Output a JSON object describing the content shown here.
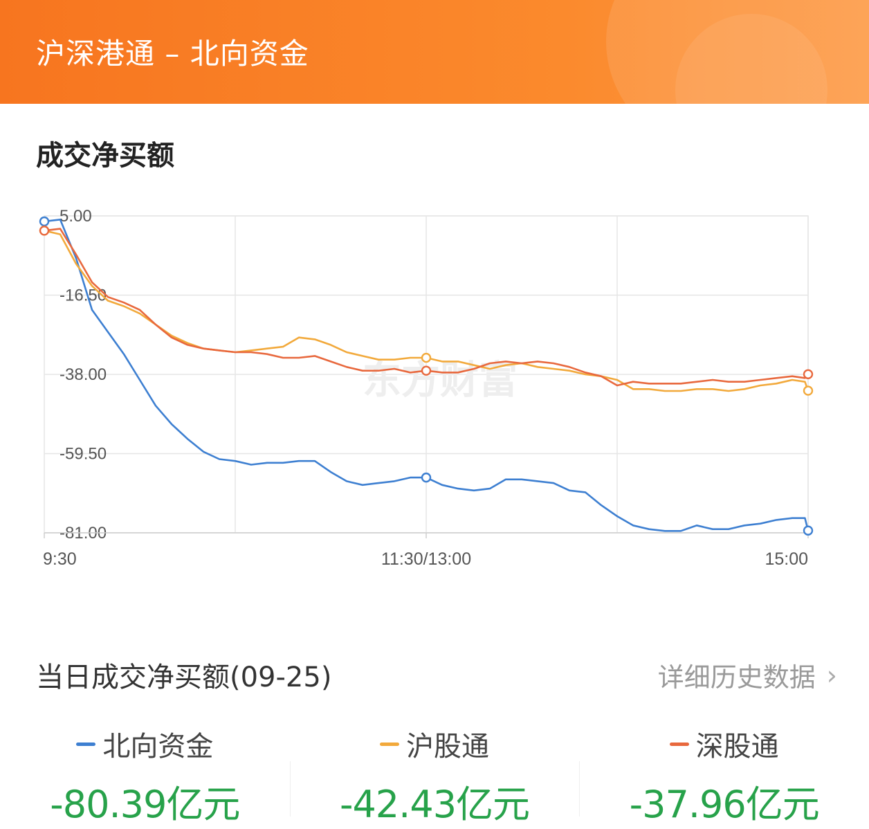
{
  "header": {
    "title": "沪深港通 – 北向资金"
  },
  "section": {
    "title": "成交净买额"
  },
  "watermark": "东方财富",
  "chart_data": {
    "type": "line",
    "title": "",
    "x_labels": [
      "9:30",
      "11:30/13:00",
      "15:00"
    ],
    "y_ticks": [
      "5.00",
      "-16.50",
      "-38.00",
      "-59.50",
      "-81.00"
    ],
    "ylim": [
      -81.0,
      5.0
    ],
    "x_range": [
      0,
      240
    ],
    "x_unit": "trading minutes",
    "grid": true,
    "legend": "below",
    "series": [
      {
        "name": "北向资金",
        "color": "#3d7fd1",
        "x": [
          0,
          5,
          10,
          15,
          20,
          25,
          30,
          35,
          40,
          45,
          50,
          55,
          60,
          65,
          70,
          75,
          80,
          85,
          90,
          95,
          100,
          105,
          110,
          115,
          120,
          125,
          130,
          135,
          140,
          145,
          150,
          155,
          160,
          165,
          170,
          175,
          180,
          185,
          190,
          195,
          200,
          205,
          210,
          215,
          220,
          225,
          230,
          235,
          239,
          240
        ],
        "values": [
          3.5,
          4.0,
          -6.5,
          -20.5,
          -26.5,
          -32.5,
          -39.5,
          -46.5,
          -51.5,
          -55.5,
          -59.0,
          -61.0,
          -61.5,
          -62.5,
          -62.0,
          -62.0,
          -61.5,
          -61.5,
          -64.5,
          -67.0,
          -68.0,
          -67.5,
          -67.0,
          -66.0,
          -66.0,
          -68.0,
          -69.0,
          -69.5,
          -69.0,
          -66.5,
          -66.5,
          -67.0,
          -67.5,
          -69.5,
          -70.0,
          -73.5,
          -76.5,
          -79.0,
          -80.0,
          -80.5,
          -80.5,
          -79.0,
          -80.0,
          -80.0,
          -79.0,
          -78.5,
          -77.5,
          -77.0,
          -77.0,
          -80.39
        ]
      },
      {
        "name": "沪股通",
        "color": "#f2a93b",
        "x": [
          0,
          5,
          10,
          15,
          20,
          25,
          30,
          35,
          40,
          45,
          50,
          55,
          60,
          65,
          70,
          75,
          80,
          85,
          90,
          95,
          100,
          105,
          110,
          115,
          120,
          125,
          130,
          135,
          140,
          145,
          150,
          155,
          160,
          165,
          170,
          175,
          180,
          185,
          190,
          195,
          200,
          205,
          210,
          215,
          220,
          225,
          230,
          235,
          239,
          240
        ],
        "values": [
          1.0,
          0.0,
          -8.0,
          -14.0,
          -18.0,
          -19.5,
          -21.5,
          -24.5,
          -27.5,
          -29.5,
          -31.0,
          -31.5,
          -32.0,
          -31.5,
          -31.0,
          -30.5,
          -28.0,
          -28.5,
          -30.0,
          -32.0,
          -33.0,
          -34.0,
          -34.0,
          -33.5,
          -33.5,
          -34.5,
          -34.5,
          -35.5,
          -36.5,
          -35.5,
          -35.0,
          -36.0,
          -36.5,
          -37.0,
          -38.0,
          -38.5,
          -39.5,
          -42.0,
          -42.0,
          -42.5,
          -42.5,
          -42.0,
          -42.0,
          -42.5,
          -42.0,
          -41.0,
          -40.5,
          -39.5,
          -40.0,
          -42.43
        ]
      },
      {
        "name": "深股通",
        "color": "#e8683d",
        "x": [
          0,
          5,
          10,
          15,
          20,
          25,
          30,
          35,
          40,
          45,
          50,
          55,
          60,
          65,
          70,
          75,
          80,
          85,
          90,
          95,
          100,
          105,
          110,
          115,
          120,
          125,
          130,
          135,
          140,
          145,
          150,
          155,
          160,
          165,
          170,
          175,
          180,
          185,
          190,
          195,
          200,
          205,
          210,
          215,
          220,
          225,
          230,
          235,
          239,
          240
        ],
        "values": [
          1.0,
          1.5,
          -5.5,
          -13.0,
          -17.0,
          -18.5,
          -20.5,
          -24.5,
          -28.0,
          -30.0,
          -31.0,
          -31.5,
          -32.0,
          -32.0,
          -32.5,
          -33.5,
          -33.5,
          -33.0,
          -34.5,
          -36.0,
          -37.0,
          -37.0,
          -36.5,
          -37.5,
          -37.0,
          -37.5,
          -37.5,
          -36.5,
          -35.0,
          -34.5,
          -35.0,
          -34.5,
          -35.0,
          -36.0,
          -37.5,
          -38.5,
          -41.0,
          -40.0,
          -40.5,
          -40.5,
          -40.5,
          -40.0,
          -39.5,
          -40.0,
          -40.0,
          -39.5,
          -39.0,
          -38.5,
          -39.0,
          -37.96
        ]
      }
    ]
  },
  "daily": {
    "title": "当日成交净买额(09-25)",
    "history_link": "详细历史数据",
    "history_icon": "chevron-right-icon",
    "items": [
      {
        "name": "北向资金",
        "value": "-80.39亿元",
        "color": "#3d7fd1"
      },
      {
        "name": "沪股通",
        "value": "-42.43亿元",
        "color": "#f2a93b"
      },
      {
        "name": "深股通",
        "value": "-37.96亿元",
        "color": "#e8683d"
      }
    ],
    "value_color": "#27a24a"
  }
}
